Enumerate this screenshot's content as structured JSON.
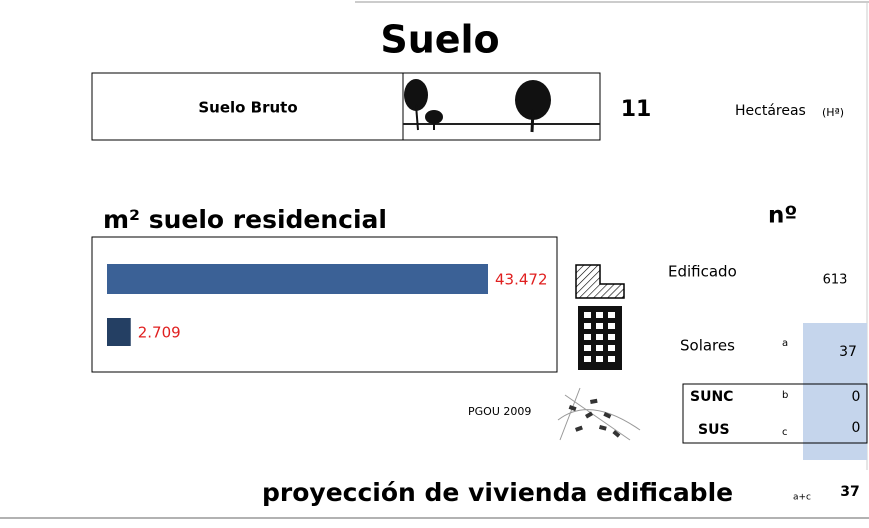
{
  "title": "Suelo",
  "suelo_bruto": {
    "label": "Suelo Bruto",
    "value": 11,
    "unit": "Hectáreas",
    "unit_abbr": "(Hª)"
  },
  "residencial_title": "m² suelo residencial",
  "count_header": "nº",
  "chart_data": {
    "type": "bar",
    "orientation": "horizontal",
    "values": [
      43472,
      2709
    ],
    "value_labels": [
      "43.472",
      "2.709"
    ],
    "colors": [
      "#3b6196",
      "#243f63"
    ],
    "label_color": "#e02020"
  },
  "counts": [
    {
      "label": "Edificado",
      "value": 613
    },
    {
      "label": "Solares",
      "key": "a",
      "value": 37
    },
    {
      "label": "SUNC",
      "key": "b",
      "value": 0
    },
    {
      "label": "SUS",
      "key": "c",
      "value": 0
    }
  ],
  "pgou": "PGOU 2009",
  "projection": {
    "label": "proyección de vivienda edificable",
    "key": "a+c",
    "value": 37
  }
}
